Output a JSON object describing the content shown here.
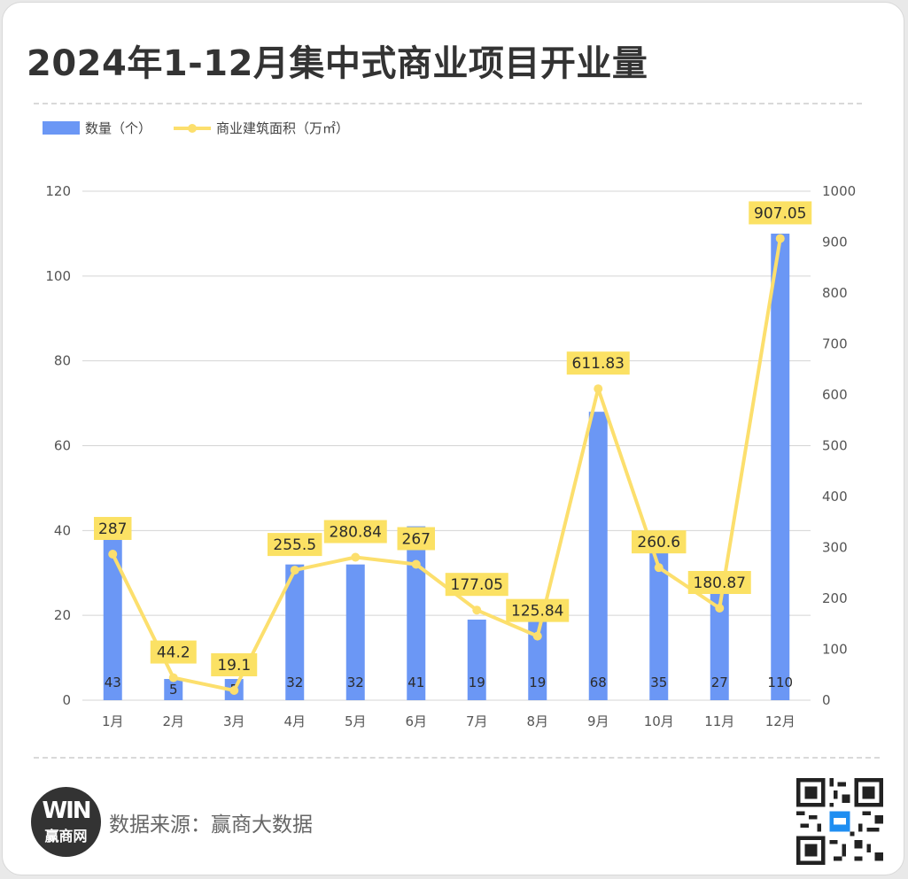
{
  "title": "2024年1-12月集中式商业项目开业量",
  "source": "数据来源：赢商大数据",
  "logo": {
    "mark": "WIN",
    "text": "赢商网"
  },
  "colors": {
    "bar": "#6b97f5",
    "line": "#fcdf6d",
    "label_bg": "#fbe164",
    "grid": "#d4d4d4"
  },
  "chart_data": {
    "type": "bar",
    "categories": [
      "1月",
      "2月",
      "3月",
      "4月",
      "5月",
      "6月",
      "7月",
      "8月",
      "9月",
      "10月",
      "11月",
      "12月"
    ],
    "series": [
      {
        "name": "数量（个）",
        "type": "bar",
        "axis": "left",
        "values": [
          43,
          5,
          5,
          32,
          32,
          41,
          19,
          19,
          68,
          35,
          27,
          110
        ]
      },
      {
        "name": "商业建筑面积（万㎡）",
        "type": "line",
        "axis": "right",
        "values": [
          287,
          44.2,
          19.1,
          255.5,
          280.84,
          267,
          177.05,
          125.84,
          611.83,
          260.6,
          180.87,
          907.05
        ]
      }
    ],
    "bar_labels": [
      "43",
      "5",
      "5",
      "32",
      "32",
      "41",
      "19",
      "19",
      "68",
      "35",
      "27",
      "110"
    ],
    "line_labels": [
      "287",
      "44.2",
      "19.1",
      "255.5",
      "280.84",
      "267",
      "177.05",
      "125.84",
      "611.83",
      "260.6",
      "180.87",
      "907.05"
    ],
    "y_left": {
      "ylim": [
        0,
        120
      ],
      "ticks": [
        "0",
        "20",
        "40",
        "60",
        "80",
        "100",
        "120"
      ]
    },
    "y_right": {
      "ylim": [
        0,
        1000
      ],
      "ticks": [
        "0",
        "100",
        "200",
        "300",
        "400",
        "500",
        "600",
        "700",
        "800",
        "900",
        "1000"
      ]
    },
    "legend_position": "top-left",
    "grid": true
  }
}
